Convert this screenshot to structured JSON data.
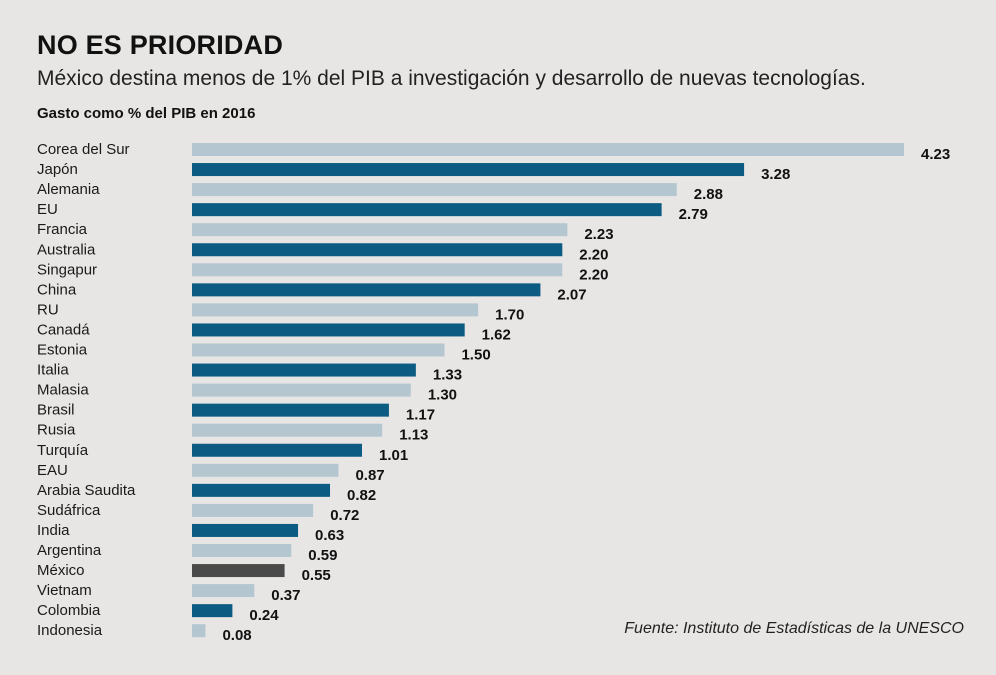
{
  "title": "NO ES PRIORIDAD",
  "subtitle": "México destina menos de 1% del PIB a investigación y desarrollo de nuevas tecnologías.",
  "source": "Fuente: Instituto de Estadísticas de la UNESCO",
  "colors": {
    "dark": "#0c5b82",
    "light": "#b4c6d0",
    "highlight": "#4a4a4a",
    "background": "#e8e6e5"
  },
  "chart_data": {
    "type": "bar",
    "orientation": "horizontal",
    "title": "NO ES PRIORIDAD",
    "xlabel": "Gasto como % del PIB en 2016",
    "ylabel": "",
    "xlim": [
      0,
      4.23
    ],
    "grid": false,
    "legend": "none",
    "categories": [
      "Corea del Sur",
      "Japón",
      "Alemania",
      "EU",
      "Francia",
      "Australia",
      "Singapur",
      "China",
      "RU",
      "Canadá",
      "Estonia",
      "Italia",
      "Malasia",
      "Brasil",
      "Rusia",
      "Turquía",
      "EAU",
      "Arabia Saudita",
      "Sudáfrica",
      "India",
      "Argentina",
      "México",
      "Vietnam",
      "Colombia",
      "Indonesia"
    ],
    "values": [
      4.23,
      3.28,
      2.88,
      2.79,
      2.23,
      2.2,
      2.2,
      2.07,
      1.7,
      1.62,
      1.5,
      1.33,
      1.3,
      1.17,
      1.13,
      1.01,
      0.87,
      0.82,
      0.72,
      0.63,
      0.59,
      0.55,
      0.37,
      0.24,
      0.08
    ],
    "labels": [
      "4.23",
      "3.28",
      "2.88",
      "2.79",
      "2.23",
      "2.20",
      "2.20",
      "2.07",
      "1.70",
      "1.62",
      "1.50",
      "1.33",
      "1.30",
      "1.17",
      "1.13",
      "1.01",
      "0.87",
      "0.82",
      "0.72",
      "0.63",
      "0.59",
      "0.55",
      "0.37",
      "0.24",
      "0.08"
    ],
    "highlight": "México"
  }
}
